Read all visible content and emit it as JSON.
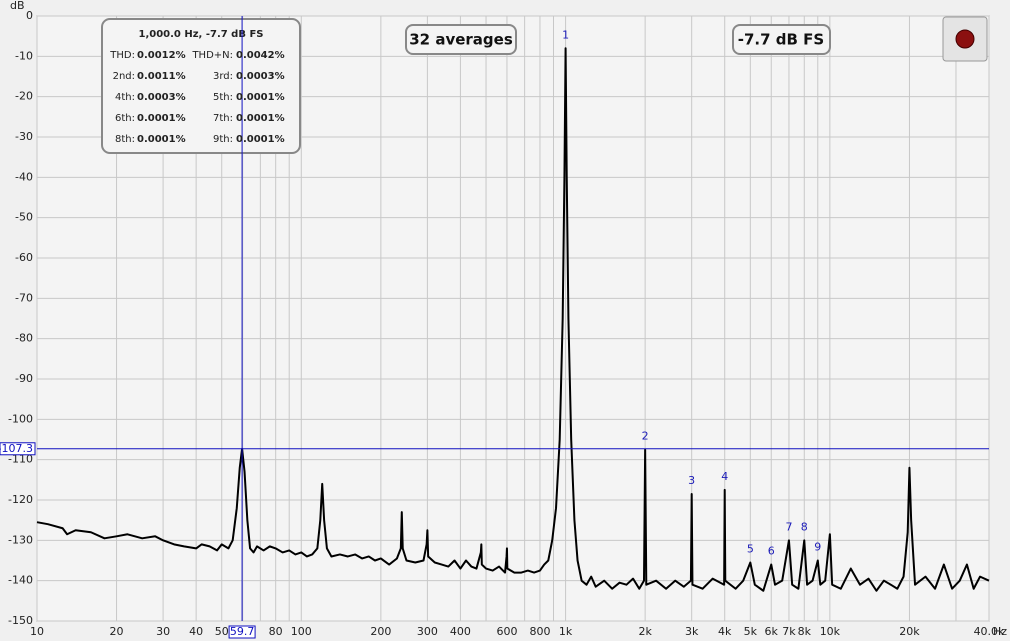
{
  "chart_data": {
    "type": "line",
    "y_label": "dB",
    "x_unit": "Hz",
    "log_x": true,
    "grid": true,
    "xlim": [
      10,
      40000
    ],
    "ylim": [
      -150,
      0
    ],
    "yticks": [
      0,
      -10,
      -20,
      -30,
      -40,
      -50,
      -60,
      -70,
      -80,
      -90,
      -100,
      -110,
      -120,
      -130,
      -140,
      -150
    ],
    "xticks": [
      10,
      20,
      30,
      40,
      50,
      80,
      100,
      200,
      300,
      400,
      600,
      800,
      {
        "value": 1000,
        "label": "1k"
      },
      {
        "value": 2000,
        "label": "2k"
      },
      {
        "value": 3000,
        "label": "3k"
      },
      {
        "value": 4000,
        "label": "4k"
      },
      {
        "value": 5000,
        "label": "5k"
      },
      {
        "value": 6000,
        "label": "6k"
      },
      {
        "value": 7000,
        "label": "7k"
      },
      {
        "value": 8000,
        "label": "8k"
      },
      {
        "value": 10000,
        "label": "10k"
      },
      {
        "value": 20000,
        "label": "20k"
      },
      {
        "value": 40000,
        "label": "40.0k"
      }
    ],
    "x_minor_grid": [
      60,
      70,
      90,
      500,
      700,
      900,
      9000,
      30000
    ],
    "cursor": {
      "x": 59.7,
      "y": -107.3,
      "color": "#1010c0"
    },
    "series": [
      {
        "name": "Spectrum",
        "color": "#000000",
        "x": [
          10,
          11,
          12.5,
          13,
          14,
          16,
          18,
          20,
          22,
          25,
          28,
          30,
          33,
          36,
          40,
          42,
          45,
          48,
          50,
          53,
          55,
          57,
          58.5,
          59.7,
          61,
          62.5,
          64,
          66,
          68,
          72,
          76,
          80,
          85,
          90,
          95,
          100,
          105,
          110,
          115,
          118,
          120,
          122,
          125,
          130,
          140,
          150,
          160,
          170,
          180,
          190,
          200,
          215,
          230,
          238,
          240,
          242,
          250,
          270,
          290,
          298,
          300,
          302,
          320,
          340,
          360,
          380,
          400,
          420,
          440,
          460,
          478,
          480,
          482,
          500,
          530,
          560,
          590,
          598,
          600,
          602,
          640,
          680,
          720,
          760,
          800,
          830,
          860,
          890,
          920,
          950,
          975,
          990,
          1000,
          1010,
          1025,
          1050,
          1080,
          1110,
          1150,
          1200,
          1250,
          1300,
          1400,
          1500,
          1600,
          1700,
          1800,
          1900,
          1980,
          2000,
          2020,
          2200,
          2400,
          2600,
          2800,
          2980,
          3000,
          3020,
          3300,
          3600,
          3980,
          4000,
          4020,
          4400,
          4700,
          5000,
          5200,
          5600,
          6000,
          6200,
          6600,
          7000,
          7200,
          7600,
          8000,
          8200,
          8600,
          9000,
          9200,
          9600,
          10000,
          10200,
          11000,
          12000,
          13000,
          14000,
          15000,
          16000,
          17000,
          18000,
          19000,
          19700,
          20000,
          20300,
          21000,
          23000,
          25000,
          27000,
          29000,
          31000,
          33000,
          35000,
          37000,
          40000
        ],
        "values": [
          -125.5,
          -126,
          -127,
          -128.5,
          -127.5,
          -128,
          -129.5,
          -129,
          -128.5,
          -129.5,
          -129,
          -130,
          -131,
          -131.5,
          -132,
          -131,
          -131.5,
          -132.5,
          -131,
          -132,
          -130,
          -122,
          -112,
          -107.3,
          -113,
          -125,
          -132,
          -133,
          -131.5,
          -132.5,
          -131.5,
          -132,
          -133,
          -132.5,
          -133.5,
          -133,
          -134,
          -133.5,
          -132,
          -125,
          -116,
          -125,
          -132,
          -134,
          -133.5,
          -134,
          -133.5,
          -134.5,
          -134,
          -135,
          -134.5,
          -136,
          -134.5,
          -132,
          -123,
          -132,
          -135,
          -135.5,
          -135,
          -131,
          -127.5,
          -134,
          -135.5,
          -136,
          -136.5,
          -135,
          -137,
          -135,
          -136.5,
          -137,
          -133,
          -131,
          -136,
          -137,
          -137.5,
          -136.5,
          -138,
          -134,
          -132,
          -137,
          -138,
          -138,
          -137.5,
          -138,
          -137.5,
          -136,
          -135,
          -130,
          -122,
          -105,
          -75,
          -40,
          -8,
          -40,
          -75,
          -105,
          -125,
          -135,
          -140,
          -141,
          -139,
          -141.5,
          -140,
          -142,
          -140.5,
          -141,
          -139.5,
          -142,
          -140,
          -107.5,
          -141,
          -140,
          -142,
          -140,
          -141.5,
          -140,
          -118.5,
          -141,
          -142,
          -139.5,
          -141,
          -117.5,
          -140,
          -142,
          -140,
          -135.5,
          -141,
          -142.5,
          -136,
          -141,
          -140,
          -130,
          -141,
          -142,
          -130,
          -141,
          -140,
          -135,
          -141,
          -140,
          -128.5,
          -141,
          -142,
          -137,
          -141,
          -139.5,
          -142.5,
          -140,
          -141,
          -142,
          -139,
          -128,
          -112,
          -125,
          -141,
          -139,
          -142,
          -136,
          -142,
          -140,
          -136,
          -142,
          -139,
          -140
        ]
      }
    ],
    "harmonics": {
      "color": "#1a1ab8",
      "labels": [
        "1",
        "2",
        "3",
        "4",
        "5",
        "6",
        "7",
        "8",
        "9"
      ],
      "x": [
        1000,
        2000,
        3000,
        4000,
        5000,
        6000,
        7000,
        8000,
        9000
      ],
      "y": [
        -8,
        -107.5,
        -118.5,
        -117.5,
        -135.5,
        -136,
        -130,
        -130,
        -135
      ]
    },
    "info": {
      "title": "1,000.0 Hz, -7.7 dB FS",
      "rows": [
        [
          "THD:",
          "0.0012%",
          "THD+N:",
          "0.0042%"
        ],
        [
          "2nd:",
          "0.0011%",
          "3rd:",
          "0.0003%"
        ],
        [
          "4th:",
          "0.0003%",
          "5th:",
          "0.0001%"
        ],
        [
          "6th:",
          "0.0001%",
          "7th:",
          "0.0001%"
        ],
        [
          "8th:",
          "0.0001%",
          "9th:",
          "0.0001%"
        ]
      ]
    },
    "averages": "32 averages",
    "level": "-7.7 dB FS"
  }
}
